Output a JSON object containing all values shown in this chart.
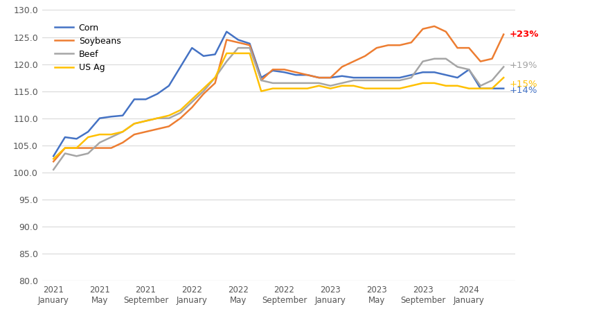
{
  "series": {
    "Corn": {
      "color": "#4472C4",
      "label": "Corn",
      "end_label": "+14%",
      "end_label_color": "#4472C4"
    },
    "Soybeans": {
      "color": "#ED7D31",
      "label": "Soybeans",
      "end_label": "+23%",
      "end_label_color": "#FF0000"
    },
    "Beef": {
      "color": "#A5A5A5",
      "label": "Beef",
      "end_label": "+19%",
      "end_label_color": "#A5A5A5"
    },
    "US Ag": {
      "color": "#FFC000",
      "label": "US Ag",
      "end_label": "+15%",
      "end_label_color": "#FFC000"
    }
  },
  "x_tick_labels": [
    "2021\nJanuary",
    "2021\nMay",
    "2021\nSeptember",
    "2022\nJanuary",
    "2022\nMay",
    "2022\nSeptember",
    "2023\nJanuary",
    "2023\nMay",
    "2023\nSeptember",
    "2024\nJanuary"
  ],
  "tick_positions": [
    0,
    4,
    8,
    12,
    16,
    20,
    24,
    28,
    32,
    36
  ],
  "ylim": [
    80.0,
    130.0
  ],
  "yticks": [
    80.0,
    85.0,
    90.0,
    95.0,
    100.0,
    105.0,
    110.0,
    115.0,
    120.0,
    125.0,
    130.0
  ],
  "corn_values": [
    103.0,
    106.5,
    106.2,
    107.5,
    110.0,
    110.3,
    110.5,
    113.5,
    113.5,
    114.5,
    116.0,
    119.5,
    123.0,
    121.5,
    121.8,
    126.0,
    124.5,
    123.8,
    117.5,
    118.8,
    118.5,
    118.0,
    118.0,
    117.5,
    117.5,
    117.8,
    117.5,
    117.5,
    117.5,
    117.5,
    117.5,
    118.0,
    118.5,
    118.5,
    118.0,
    117.5,
    119.0,
    115.5,
    115.5,
    115.5
  ],
  "soybeans_values": [
    102.0,
    104.5,
    104.5,
    104.5,
    104.5,
    104.5,
    105.5,
    107.0,
    107.5,
    108.0,
    108.5,
    110.0,
    112.0,
    114.5,
    116.5,
    124.5,
    124.0,
    123.5,
    117.0,
    119.0,
    119.0,
    118.5,
    118.0,
    117.5,
    117.5,
    119.5,
    120.5,
    121.5,
    123.0,
    123.5,
    123.5,
    124.0,
    126.5,
    127.0,
    126.0,
    123.0,
    123.0,
    120.5,
    121.0,
    125.5
  ],
  "beef_values": [
    100.5,
    103.5,
    103.0,
    103.5,
    105.5,
    106.5,
    107.5,
    109.0,
    109.5,
    110.0,
    110.0,
    111.0,
    113.0,
    115.0,
    117.5,
    120.5,
    123.0,
    123.0,
    117.0,
    116.5,
    116.5,
    116.5,
    116.5,
    116.5,
    116.0,
    116.5,
    117.0,
    117.0,
    117.0,
    117.0,
    117.0,
    117.5,
    120.5,
    121.0,
    121.0,
    119.5,
    119.0,
    116.0,
    117.0,
    119.5
  ],
  "us_ag_values": [
    102.5,
    104.5,
    104.5,
    106.5,
    107.0,
    107.0,
    107.5,
    109.0,
    109.5,
    110.0,
    110.5,
    111.5,
    113.5,
    115.5,
    117.5,
    122.0,
    122.0,
    122.0,
    115.0,
    115.5,
    115.5,
    115.5,
    115.5,
    116.0,
    115.5,
    116.0,
    116.0,
    115.5,
    115.5,
    115.5,
    115.5,
    116.0,
    116.5,
    116.5,
    116.0,
    116.0,
    115.5,
    115.5,
    115.5,
    117.5
  ],
  "n_points": 40,
  "background_color": "#FFFFFF",
  "grid_color": "#D9D9D9"
}
